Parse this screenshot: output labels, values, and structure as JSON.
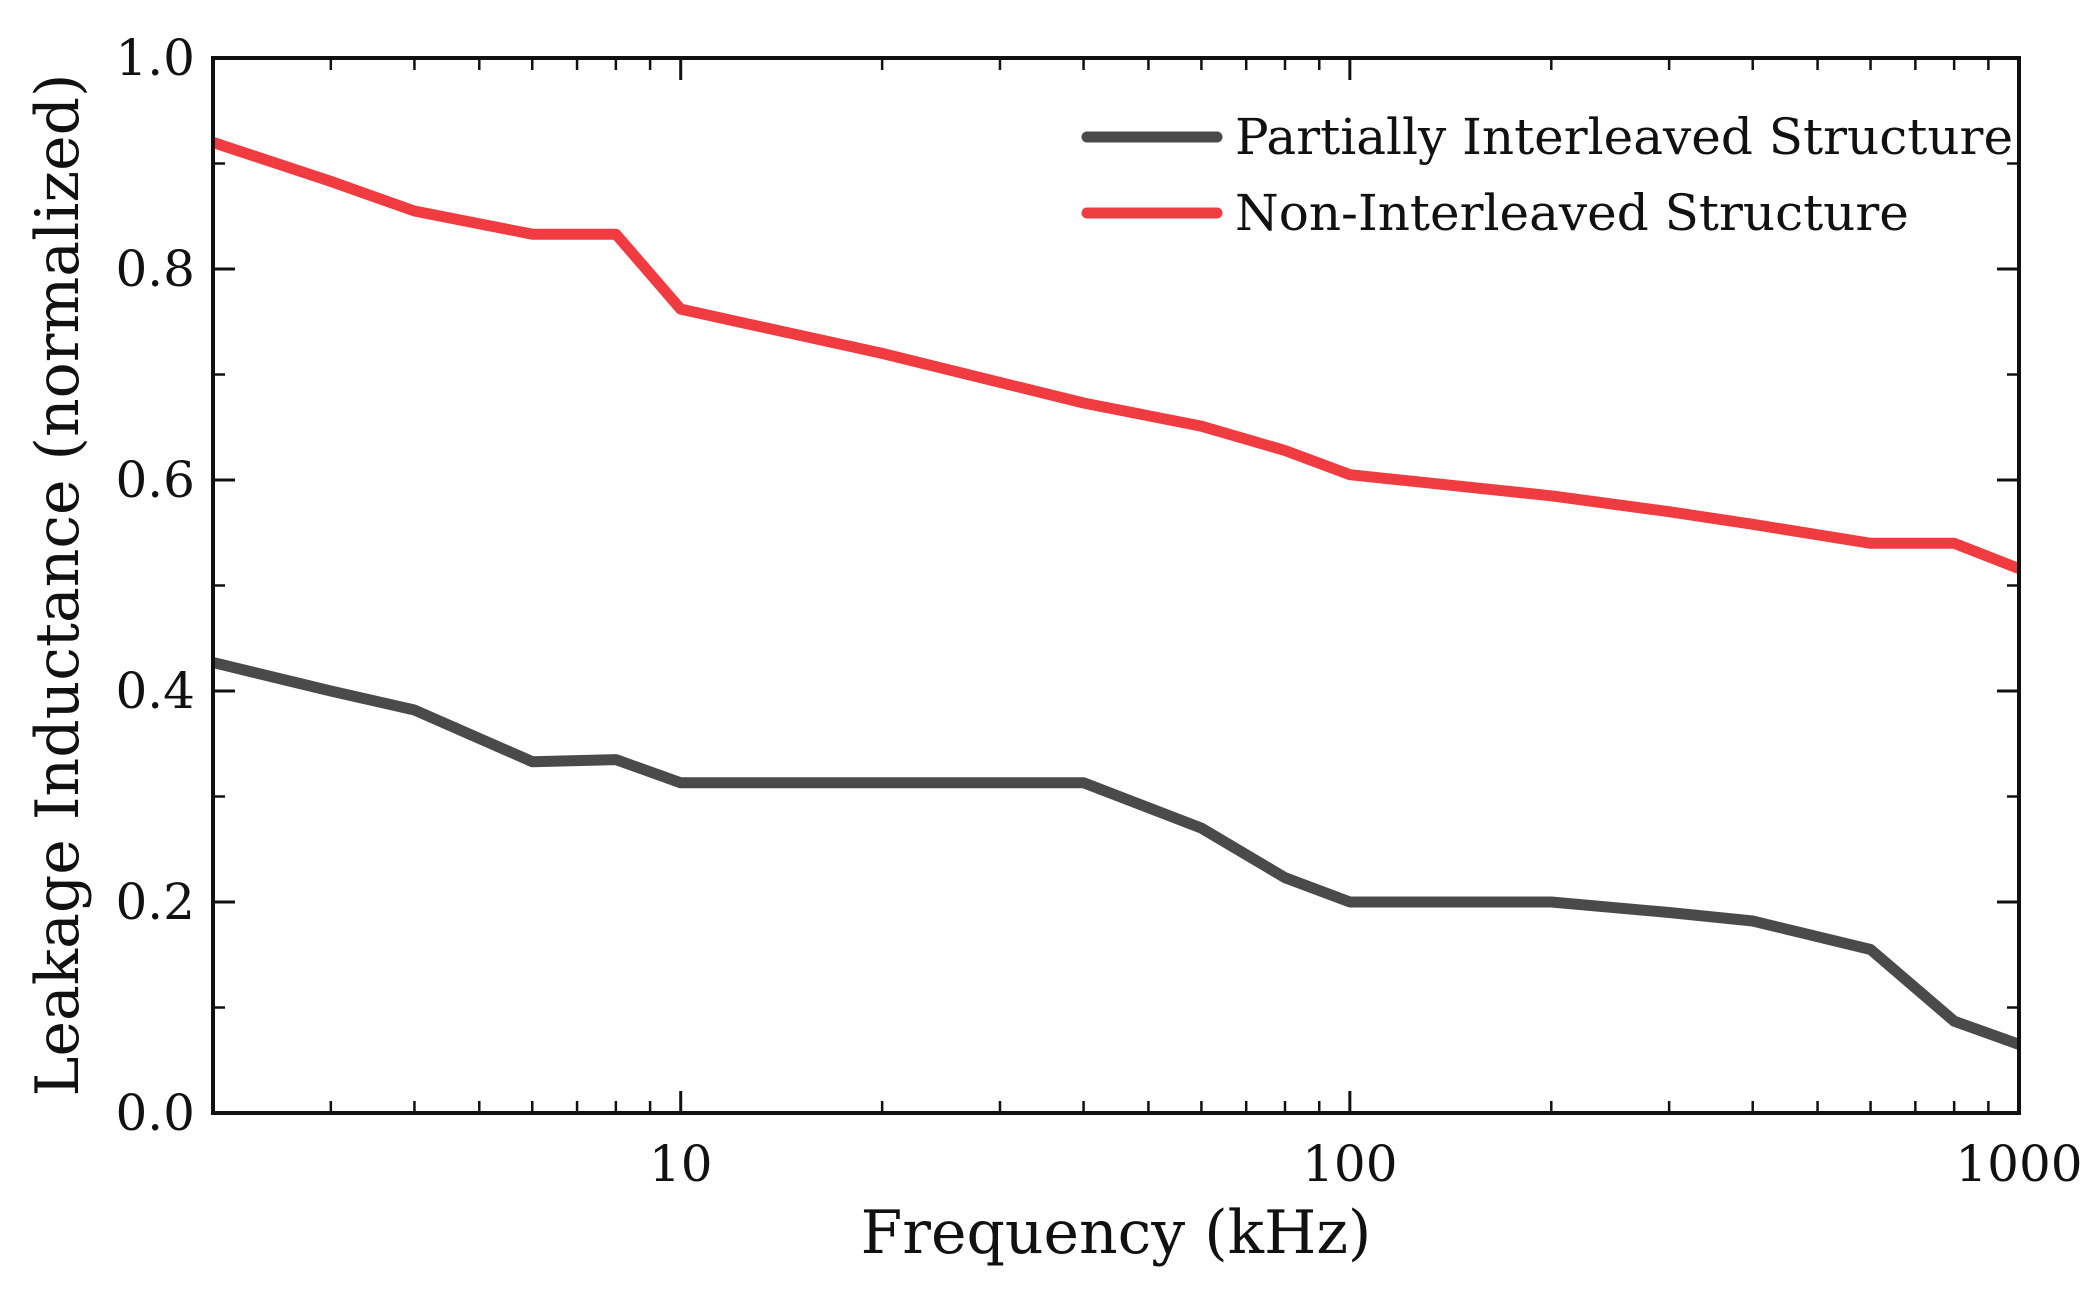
{
  "chart_data": {
    "type": "line",
    "title": "",
    "xlabel": "Frequency (kHz)",
    "ylabel": "Leakage Inductance (normalized)",
    "xscale": "log",
    "xlim": [
      2,
      1000
    ],
    "ylim": [
      0.0,
      1.0
    ],
    "x_ticks": [
      10,
      100,
      1000
    ],
    "x_tick_labels": [
      "10",
      "100",
      "1000"
    ],
    "y_ticks": [
      0.0,
      0.2,
      0.4,
      0.6,
      0.8,
      1.0
    ],
    "y_tick_labels": [
      "0.0",
      "0.2",
      "0.4",
      "0.6",
      "0.8",
      "1.0"
    ],
    "grid": false,
    "legend_position": "top-right",
    "series": [
      {
        "name": "Partially Interleaved Structure",
        "color": "#4a4a4a",
        "x": [
          2,
          3,
          4,
          6,
          8,
          10,
          20,
          40,
          60,
          80,
          100,
          200,
          300,
          400,
          600,
          800,
          1000
        ],
        "values": [
          0.427,
          0.4,
          0.382,
          0.333,
          0.335,
          0.313,
          0.313,
          0.313,
          0.27,
          0.223,
          0.2,
          0.2,
          0.19,
          0.182,
          0.155,
          0.087,
          0.065
        ]
      },
      {
        "name": "Non-Interleaved Structure",
        "color": "#f03c41",
        "x": [
          2,
          3,
          4,
          6,
          8,
          10,
          20,
          40,
          60,
          80,
          100,
          200,
          300,
          400,
          600,
          800,
          1000
        ],
        "values": [
          0.92,
          0.883,
          0.855,
          0.833,
          0.833,
          0.762,
          0.72,
          0.673,
          0.651,
          0.628,
          0.605,
          0.585,
          0.57,
          0.558,
          0.54,
          0.54,
          0.516
        ]
      }
    ]
  }
}
